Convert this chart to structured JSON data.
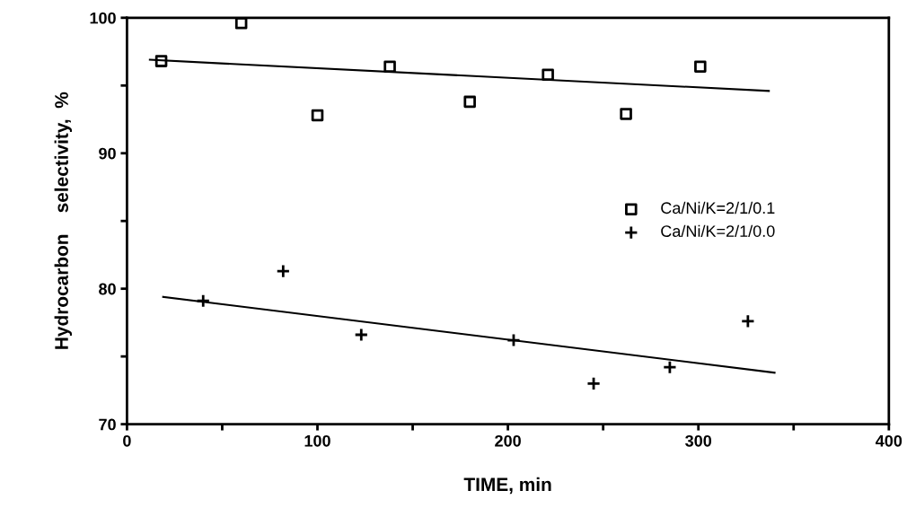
{
  "chart_data": {
    "type": "scatter",
    "xlabel": "TIME, min",
    "ylabel": "Hydrocarbon    selectivity,  %",
    "xlim": [
      0,
      400
    ],
    "ylim": [
      70,
      100
    ],
    "xticks": [
      0,
      {
        "value": 50,
        "label": null
      },
      100,
      {
        "value": 150,
        "label": null
      },
      200,
      {
        "value": 250,
        "label": null
      },
      300,
      {
        "value": 350,
        "label": null
      },
      400
    ],
    "yticks": [
      70,
      {
        "value": 75,
        "label": null
      },
      80,
      {
        "value": 85,
        "label": null
      },
      90,
      {
        "value": 95,
        "label": null
      },
      100
    ],
    "grid": false,
    "legend": "right",
    "series": [
      {
        "name": "Ca/Ni/K=2/1/0.1",
        "color": "#000000",
        "marker": "square",
        "x": [
          18,
          60,
          100,
          138,
          180,
          221,
          262,
          301
        ],
        "values": [
          96.8,
          99.6,
          92.8,
          96.4,
          93.8,
          95.8,
          92.9,
          96.4
        ]
      },
      {
        "name": "Ca/Ni/K=2/1/0.0",
        "color": "#000000",
        "marker": "cross",
        "x": [
          40,
          82,
          123,
          203,
          245,
          285,
          326
        ],
        "values": [
          79.1,
          81.3,
          76.6,
          76.2,
          73.0,
          74.2,
          77.6
        ]
      },
      {
        "type": "line",
        "color": "#000000",
        "marker": "none",
        "line_style": "solid",
        "x": [
          12,
          337
        ],
        "values": [
          96.9,
          94.6
        ]
      },
      {
        "type": "line",
        "color": "#000000",
        "marker": "none",
        "line_style": "solid",
        "x": [
          19,
          340
        ],
        "values": [
          79.4,
          73.8
        ]
      }
    ]
  }
}
